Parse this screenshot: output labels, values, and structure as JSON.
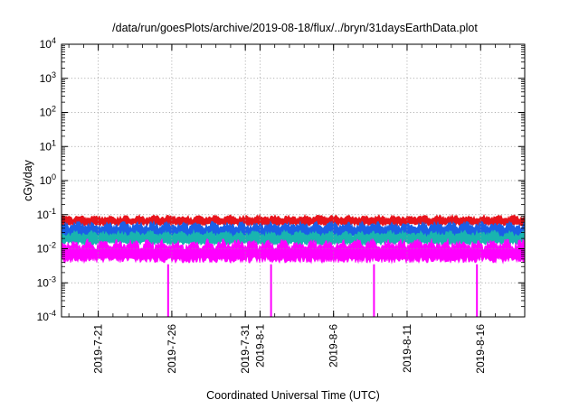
{
  "chart_data": {
    "type": "area",
    "title": "/data/run/goesPlots/archive/2019-08-18/flux/../bryn/31daysEarthData.plot",
    "xlabel": "Coordinated Universal Time (UTC)",
    "ylabel": "cGy/day",
    "yscale": "log",
    "ylim": [
      0.0001,
      10000
    ],
    "y_ticks": [
      {
        "value": 0.0001,
        "base": "10",
        "exp": "-4"
      },
      {
        "value": 0.001,
        "base": "10",
        "exp": "-3"
      },
      {
        "value": 0.01,
        "base": "10",
        "exp": "-2"
      },
      {
        "value": 0.1,
        "base": "10",
        "exp": "-1"
      },
      {
        "value": 1,
        "base": "10",
        "exp": "0"
      },
      {
        "value": 10,
        "base": "10",
        "exp": "1"
      },
      {
        "value": 100,
        "base": "10",
        "exp": "2"
      },
      {
        "value": 1000,
        "base": "10",
        "exp": "3"
      },
      {
        "value": 10000,
        "base": "10",
        "exp": "4"
      }
    ],
    "xlim": [
      "2019-07-18T12:00",
      "2019-08-19T00:00"
    ],
    "x_ticks": [
      {
        "date": "2019-07-21",
        "label": "2019-7-21"
      },
      {
        "date": "2019-07-26",
        "label": "2019-7-26"
      },
      {
        "date": "2019-07-31",
        "label": "2019-7-31"
      },
      {
        "date": "2019-08-01",
        "label": "2019-8-1"
      },
      {
        "date": "2019-08-06",
        "label": "2019-8-6"
      },
      {
        "date": "2019-08-11",
        "label": "2019-8-11"
      },
      {
        "date": "2019-08-16",
        "label": "2019-8-16"
      }
    ],
    "grid": true,
    "series": [
      {
        "color": "#e8141c",
        "min": 0.045,
        "max": 0.1
      },
      {
        "color": "#1a5fe6",
        "min": 0.018,
        "max": 0.065
      },
      {
        "color": "#19b4b0",
        "min": 0.012,
        "max": 0.035
      },
      {
        "color": "#ff00ff",
        "min": 0.0035,
        "max": 0.02
      }
    ],
    "dropouts": [
      "2019-07-25T18:00",
      "2019-08-01T18:00",
      "2019-08-08T18:00",
      "2019-08-15T18:00"
    ],
    "dropout_value": 0.0001
  }
}
